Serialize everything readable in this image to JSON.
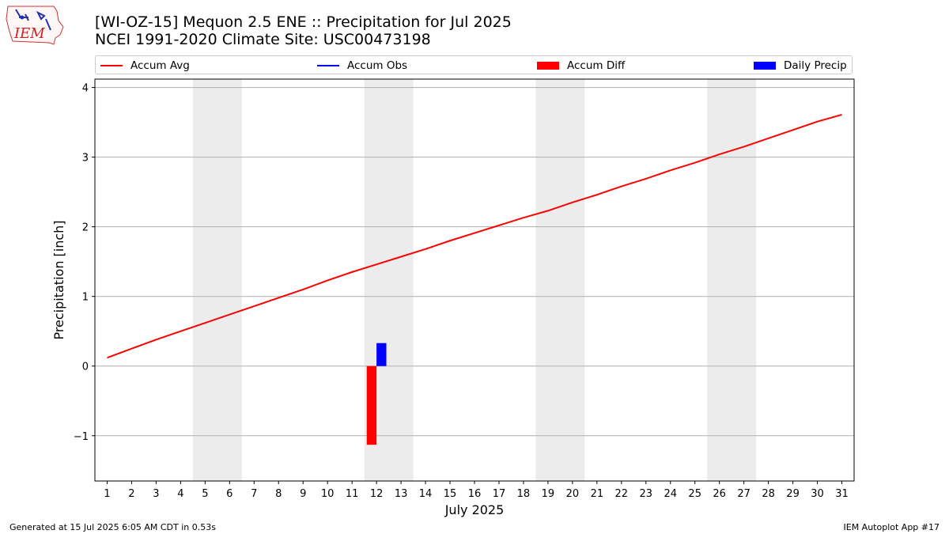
{
  "header": {
    "logo_text": "IEM",
    "title_line1": "[WI-OZ-15] Mequon 2.5 ENE :: Precipitation for Jul 2025",
    "title_line2": "NCEI 1991-2020 Climate Site: USC00473198"
  },
  "legend": {
    "items": [
      {
        "label": "Accum Avg",
        "kind": "line",
        "color": "#ff0000"
      },
      {
        "label": "Accum Obs",
        "kind": "line",
        "color": "#0000ff"
      },
      {
        "label": "Accum Diff",
        "kind": "bar",
        "color": "#ff0000"
      },
      {
        "label": "Daily Precip",
        "kind": "bar",
        "color": "#0000ff"
      }
    ]
  },
  "footer": {
    "left": "Generated at 15 Jul 2025 6:05 AM CDT in 0.53s",
    "right": "IEM Autoplot App #17"
  },
  "chart_data": {
    "type": "line",
    "xlabel": "July 2025",
    "ylabel": "Precipitation [inch]",
    "xlim": [
      0.5,
      31.5
    ],
    "ylim": [
      -1.65,
      4.12
    ],
    "x": [
      1,
      2,
      3,
      4,
      5,
      6,
      7,
      8,
      9,
      10,
      11,
      12,
      13,
      14,
      15,
      16,
      17,
      18,
      19,
      20,
      21,
      22,
      23,
      24,
      25,
      26,
      27,
      28,
      29,
      30,
      31
    ],
    "x_tick_labels": [
      "1",
      "2",
      "3",
      "4",
      "5",
      "6",
      "7",
      "8",
      "9",
      "10",
      "11",
      "12",
      "13",
      "14",
      "15",
      "16",
      "17",
      "18",
      "19",
      "20",
      "21",
      "22",
      "23",
      "24",
      "25",
      "26",
      "27",
      "28",
      "29",
      "30",
      "31"
    ],
    "y_ticks": [
      -1,
      0,
      1,
      2,
      3,
      4
    ],
    "y_tick_labels": [
      "−1",
      "0",
      "1",
      "2",
      "3",
      "4"
    ],
    "grid": "horizontal",
    "weekend_shading": [
      [
        4.5,
        6.5
      ],
      [
        11.5,
        13.5
      ],
      [
        18.5,
        20.5
      ],
      [
        25.5,
        27.5
      ]
    ],
    "shade_color": "#ececec",
    "series": [
      {
        "name": "Accum Avg",
        "kind": "line",
        "color": "#ff0000",
        "values": [
          0.12,
          0.25,
          0.38,
          0.5,
          0.62,
          0.74,
          0.86,
          0.98,
          1.1,
          1.23,
          1.35,
          1.46,
          1.57,
          1.68,
          1.8,
          1.91,
          2.02,
          2.13,
          2.23,
          2.35,
          2.46,
          2.58,
          2.69,
          2.81,
          2.92,
          3.04,
          3.15,
          3.27,
          3.39,
          3.51,
          3.61
        ]
      },
      {
        "name": "Accum Diff",
        "kind": "bar",
        "color": "#ff0000",
        "points": [
          {
            "x": 11.8,
            "value": -1.13
          }
        ]
      },
      {
        "name": "Daily Precip",
        "kind": "bar",
        "color": "#0000ff",
        "points": [
          {
            "x": 12.2,
            "value": 0.33
          }
        ]
      }
    ]
  }
}
